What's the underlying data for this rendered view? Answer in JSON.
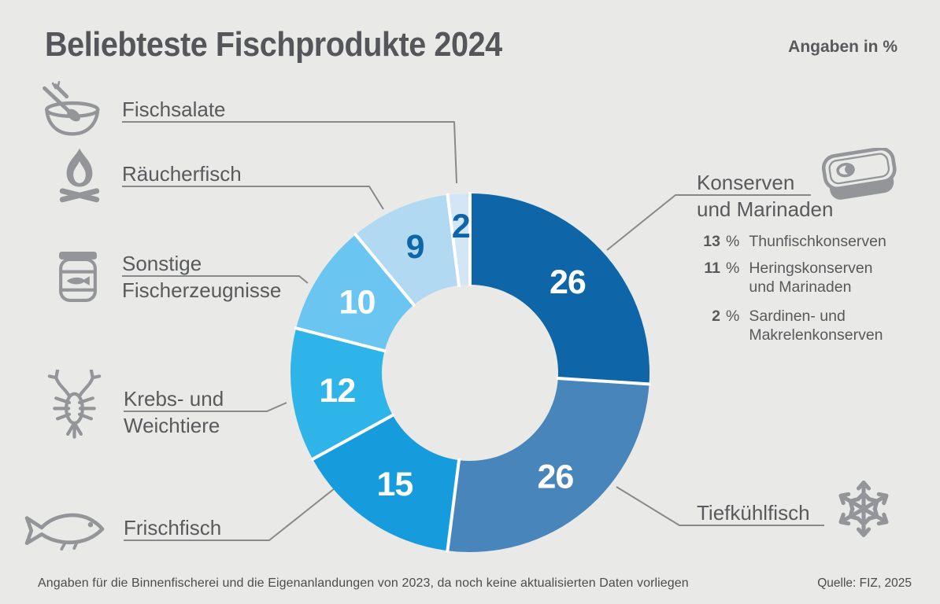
{
  "header": {
    "title": "Beliebteste Fischprodukte 2024",
    "unit_note": "Angaben in %"
  },
  "colors": {
    "background": "#e9e9e8",
    "text_dark": "#58595b",
    "icon_gray": "#939598",
    "leader_line": "#87898b",
    "accent_dark_blue": "#0e66a8"
  },
  "chart_data": {
    "type": "donut",
    "title": "Beliebteste Fischprodukte 2024",
    "unit": "%",
    "total": 100,
    "start_angle_deg": 0,
    "direction": "clockwise",
    "legend_position": "callouts-around-chart",
    "segments": [
      {
        "label": "Konserven und Marinaden",
        "value": 26,
        "color": "#0e66a8",
        "label_color": "#ffffff"
      },
      {
        "label": "Tiefkühlfisch",
        "value": 26,
        "color": "#4785bb",
        "label_color": "#ffffff"
      },
      {
        "label": "Frischfisch",
        "value": 15,
        "color": "#169bdd",
        "label_color": "#ffffff"
      },
      {
        "label": "Krebs- und Weichtiere",
        "value": 12,
        "color": "#2fb4e9",
        "label_color": "#ffffff"
      },
      {
        "label": "Sonstige Fischerzeugnisse",
        "value": 10,
        "color": "#6ac5f0",
        "label_color": "#ffffff"
      },
      {
        "label": "Räucherfisch",
        "value": 9,
        "color": "#b1d9f1",
        "label_color": "#0e66a8",
        "label_radius": 176
      },
      {
        "label": "Fischsalate",
        "value": 2,
        "color": "#d2e6f6",
        "label_color": "#0e66a8",
        "label_radius": 188
      }
    ]
  },
  "callouts": {
    "fischsalate": {
      "lines": [
        "Fischsalate"
      ]
    },
    "raeucherfisch": {
      "lines": [
        "Räucherfisch"
      ]
    },
    "sonstige": {
      "lines": [
        "Sonstige",
        "Fischerzeugnisse"
      ]
    },
    "krebs": {
      "lines": [
        "Krebs- und",
        "Weichtiere"
      ]
    },
    "frischfisch": {
      "lines": [
        "Frischfisch"
      ]
    },
    "konserven": {
      "lines": [
        "Konserven",
        "und Marinaden"
      ]
    },
    "tiefkuehlfisch": {
      "lines": [
        "Tiefkühlfisch"
      ]
    }
  },
  "konserven_breakdown": [
    {
      "value": "13",
      "unit": "%",
      "lines": [
        "Thunfischkonserven",
        ""
      ]
    },
    {
      "value": "11",
      "unit": "%",
      "lines": [
        "Heringskonserven",
        "und Marinaden"
      ]
    },
    {
      "value": "2",
      "unit": "%",
      "lines": [
        "Sardinen- und",
        "Makrelenkonserven"
      ]
    }
  ],
  "icons": {
    "fischsalate": "salad-bowl",
    "raeucherfisch": "campfire",
    "sonstige": "preserving-jar-with-fish",
    "krebs": "crayfish",
    "frischfisch": "fish",
    "konserven": "sardine-tin",
    "tiefkuehlfisch": "snowflake"
  },
  "footer": {
    "footnote": "Angaben für die Binnenfischerei und die Eigenanlandungen von 2023, da noch keine aktualisierten Daten vorliegen",
    "source": "Quelle: FIZ, 2025"
  }
}
